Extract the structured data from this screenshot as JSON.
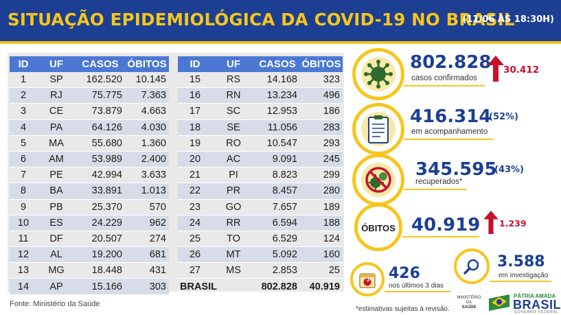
{
  "header": {
    "title": "SITUAÇÃO EPIDEMIOLÓGICA DA COVID-19 NO BRASIL",
    "date": "(11/06 ÀS 18:30H)"
  },
  "table": {
    "headers": [
      "ID",
      "UF",
      "CASOS",
      "ÓBITOS"
    ],
    "left": [
      [
        "1",
        "SP",
        "162.520",
        "10.145"
      ],
      [
        "2",
        "RJ",
        "75.775",
        "7.363"
      ],
      [
        "3",
        "CE",
        "73.879",
        "4.663"
      ],
      [
        "4",
        "PA",
        "64.126",
        "4.030"
      ],
      [
        "5",
        "MA",
        "55.680",
        "1.360"
      ],
      [
        "6",
        "AM",
        "53.989",
        "2.400"
      ],
      [
        "7",
        "PE",
        "42.994",
        "3.633"
      ],
      [
        "8",
        "BA",
        "33.891",
        "1.013"
      ],
      [
        "9",
        "PB",
        "25.370",
        "570"
      ],
      [
        "10",
        "ES",
        "24.229",
        "962"
      ],
      [
        "11",
        "DF",
        "20.507",
        "274"
      ],
      [
        "12",
        "AL",
        "19.200",
        "681"
      ],
      [
        "13",
        "MG",
        "18.448",
        "431"
      ],
      [
        "14",
        "AP",
        "15.166",
        "303"
      ]
    ],
    "right": [
      [
        "15",
        "RS",
        "14.168",
        "323"
      ],
      [
        "16",
        "RN",
        "13.234",
        "496"
      ],
      [
        "17",
        "SC",
        "12.953",
        "186"
      ],
      [
        "18",
        "SE",
        "11.056",
        "283"
      ],
      [
        "19",
        "RO",
        "10.547",
        "293"
      ],
      [
        "20",
        "AC",
        "9.091",
        "245"
      ],
      [
        "21",
        "PI",
        "8.823",
        "299"
      ],
      [
        "22",
        "PR",
        "8.457",
        "280"
      ],
      [
        "23",
        "GO",
        "7.657",
        "189"
      ],
      [
        "24",
        "RR",
        "6.594",
        "188"
      ],
      [
        "25",
        "TO",
        "6.529",
        "124"
      ],
      [
        "26",
        "MT",
        "5.092",
        "160"
      ],
      [
        "27",
        "MS",
        "2.853",
        "25"
      ]
    ],
    "total": {
      "label": "BRASIL",
      "casos": "802.828",
      "obitos": "40.919"
    }
  },
  "fonte": "Fonte: Ministério da Saúde",
  "stats": {
    "confirmados": {
      "value": "802.828",
      "caption": "casos confirmados",
      "delta": "30.412"
    },
    "acompanhamento": {
      "value": "416.314",
      "pct": "(52%)",
      "caption": "em acompanhamento"
    },
    "recuperados": {
      "value": "345.595",
      "pct": "(43%)",
      "caption": "recuperados*"
    },
    "obitos": {
      "label": "ÓBITOS",
      "value": "40.919",
      "delta": "1.239"
    },
    "ultimos": {
      "value": "426",
      "caption": "nos últimos 3 dias",
      "calendar_day": "3"
    },
    "investigacao": {
      "value": "3.588",
      "caption": "em investigação"
    }
  },
  "note": "*estimativas sujeitas à revisão.",
  "logos": {
    "ministerio": [
      "MINISTÉRIO DA",
      "SAÚDE"
    ],
    "patria": "PÁTRIA AMADA",
    "brasil": "BRASIL",
    "governo": "GOVERNO FEDERAL"
  },
  "colors": {
    "navy": "#1c3f94",
    "yellow": "#f6c61b",
    "table_header": "#4b78d3",
    "red": "#c8102e",
    "virus_green": "#2f6b2c"
  }
}
